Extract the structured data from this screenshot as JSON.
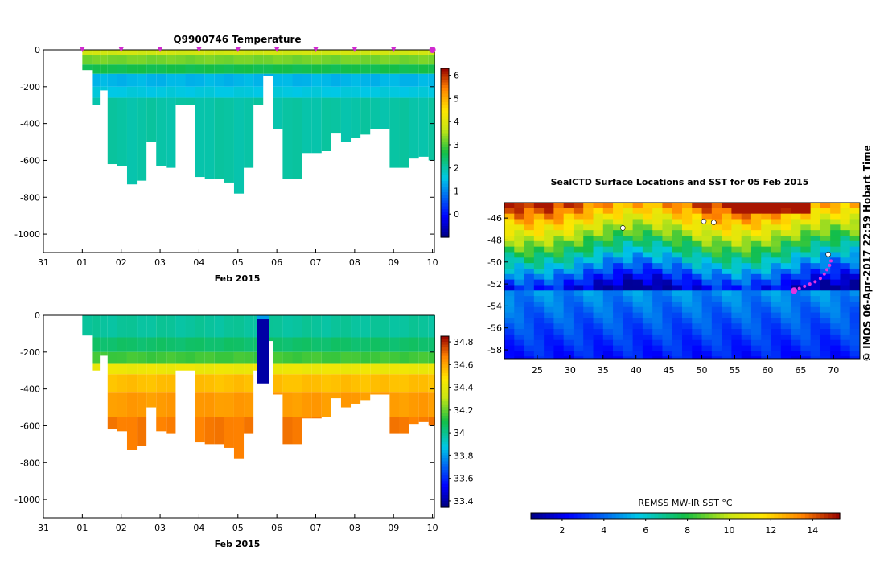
{
  "chart_data": [
    {
      "type": "heatmap",
      "name": "temperature-profile",
      "title": "Q9900746  Temperature",
      "xlabel": "Feb 2015",
      "x_tick_labels": [
        "31",
        "01",
        "02",
        "03",
        "04",
        "05",
        "06",
        "07",
        "08",
        "09",
        "10"
      ],
      "y_tick_labels": [
        "0",
        "-200",
        "-400",
        "-600",
        "-800",
        "-1000"
      ],
      "y_ticks": [
        0,
        -200,
        -400,
        -600,
        -800,
        -1000
      ],
      "ylim": [
        -1100,
        0
      ],
      "xlim_days": [
        0,
        10.05
      ],
      "surface_marker_days": [
        1,
        2,
        3,
        4,
        5,
        6,
        7,
        8,
        9,
        10
      ],
      "colorbar": {
        "min": -1,
        "max": 6.3,
        "ticks": [
          0,
          1,
          2,
          3,
          4,
          5,
          6
        ],
        "tick_labels": [
          "0",
          "1",
          "2",
          "3",
          "4",
          "5",
          "6"
        ]
      },
      "profile_days": [
        1.0,
        1.25,
        1.45,
        1.65,
        1.9,
        2.15,
        2.4,
        2.65,
        2.9,
        3.15,
        3.4,
        3.65,
        3.9,
        4.15,
        4.4,
        4.65,
        4.9,
        5.15,
        5.4,
        5.65,
        5.9,
        6.15,
        6.4,
        6.65,
        6.9,
        7.15,
        7.4,
        7.65,
        7.9,
        8.15,
        8.4,
        8.65,
        8.9,
        9.15,
        9.4,
        9.65,
        9.9,
        10.05
      ],
      "profile_depths": [
        110,
        300,
        220,
        620,
        630,
        730,
        710,
        500,
        630,
        640,
        300,
        300,
        690,
        700,
        700,
        720,
        780,
        640,
        300,
        140,
        430,
        700,
        700,
        560,
        560,
        550,
        450,
        500,
        480,
        460,
        430,
        430,
        640,
        640,
        590,
        580,
        600,
        600
      ],
      "layers": [
        {
          "to_depth": 30,
          "value": 3.8
        },
        {
          "to_depth": 80,
          "value": 3.2
        },
        {
          "to_depth": 130,
          "value": 2.6
        },
        {
          "to_depth": 200,
          "value": 1.4
        },
        {
          "to_depth": 260,
          "value": 1.6
        },
        {
          "to_depth": 9999,
          "value": 2.0
        }
      ]
    },
    {
      "type": "heatmap",
      "name": "salinity-profile",
      "title": "",
      "xlabel": "Feb 2015",
      "x_tick_labels": [
        "31",
        "01",
        "02",
        "03",
        "04",
        "05",
        "06",
        "07",
        "08",
        "09",
        "10"
      ],
      "y_tick_labels": [
        "0",
        "-200",
        "-400",
        "-600",
        "-800",
        "-1000"
      ],
      "y_ticks": [
        0,
        -200,
        -400,
        -600,
        -800,
        -1000
      ],
      "ylim": [
        -1100,
        0
      ],
      "xlim_days": [
        0,
        10.05
      ],
      "colorbar": {
        "min": 33.35,
        "max": 34.85,
        "ticks": [
          33.4,
          33.6,
          33.8,
          34,
          34.2,
          34.4,
          34.6,
          34.8
        ],
        "tick_labels": [
          "33.4",
          "33.6",
          "33.8",
          "34",
          "34.2",
          "34.4",
          "34.6",
          "34.8"
        ]
      },
      "layers": [
        {
          "to_depth": 120,
          "value": 33.98
        },
        {
          "to_depth": 200,
          "value": 34.05
        },
        {
          "to_depth": 260,
          "value": 34.15
        },
        {
          "to_depth": 320,
          "value": 34.42
        },
        {
          "to_depth": 420,
          "value": 34.55
        },
        {
          "to_depth": 550,
          "value": 34.62
        },
        {
          "to_depth": 9999,
          "value": 34.68
        }
      ],
      "anomaly": {
        "day_from": 5.5,
        "day_to": 5.8,
        "surface_value": 33.8,
        "deep_value": 33.4,
        "depth": 370
      }
    },
    {
      "type": "heatmap",
      "name": "sst-map",
      "title": "SealCTD Surface Locations and SST for 05 Feb 2015",
      "x_tick_labels": [
        "25",
        "30",
        "35",
        "40",
        "45",
        "50",
        "55",
        "60",
        "65",
        "70"
      ],
      "x_ticks": [
        25,
        30,
        35,
        40,
        45,
        50,
        55,
        60,
        65,
        70
      ],
      "y_tick_labels": [
        "-46",
        "-48",
        "-50",
        "-52",
        "-54",
        "-56",
        "-58"
      ],
      "y_ticks": [
        -46,
        -48,
        -50,
        -52,
        -54,
        -56,
        -58
      ],
      "lon_range": [
        20,
        74
      ],
      "lat_range": [
        -58.8,
        -44.6
      ],
      "track_points": [
        [
          64.0,
          -52.6
        ],
        [
          64.8,
          -52.4
        ],
        [
          65.6,
          -52.2
        ],
        [
          66.4,
          -52.0
        ],
        [
          67.2,
          -51.8
        ],
        [
          68.0,
          -51.5
        ],
        [
          68.6,
          -51.1
        ],
        [
          69.0,
          -50.7
        ],
        [
          69.4,
          -50.3
        ],
        [
          69.6,
          -49.9
        ]
      ],
      "islands": [
        [
          38.0,
          -46.9
        ],
        [
          50.3,
          -46.3
        ],
        [
          51.8,
          -46.4
        ],
        [
          69.2,
          -49.3
        ]
      ],
      "colorbar": {
        "label": "REMSS MW-IR SST °C",
        "min": 0.5,
        "max": 15.3,
        "ticks": [
          2,
          4,
          6,
          8,
          10,
          12,
          14
        ],
        "tick_labels": [
          "2",
          "4",
          "6",
          "8",
          "10",
          "12",
          "14"
        ]
      }
    }
  ],
  "credit": "© IMOS 06-Apr-2017 22:59 Hobart Time"
}
